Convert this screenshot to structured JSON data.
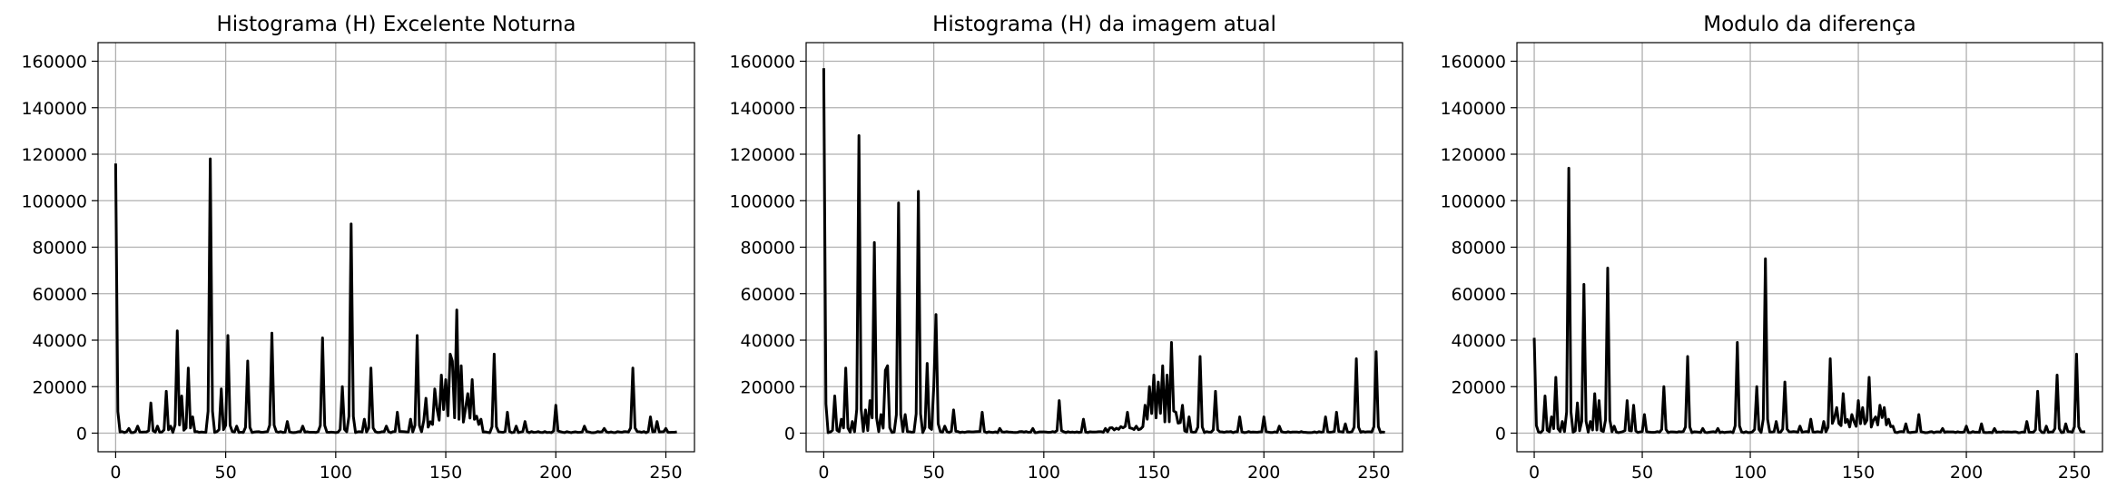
{
  "chart_data": [
    {
      "type": "line",
      "title": "Histograma (H) Excelente Noturna",
      "xlabel": "",
      "ylabel": "",
      "xlim": [
        -8,
        263
      ],
      "ylim": [
        -8000,
        168000
      ],
      "xticks": [
        0,
        50,
        100,
        150,
        200,
        250
      ],
      "yticks": [
        0,
        20000,
        40000,
        60000,
        80000,
        100000,
        120000,
        140000,
        160000
      ],
      "grid": true,
      "line_color": "#000000",
      "baseline": 500,
      "peaks": [
        [
          0,
          116000
        ],
        [
          6,
          2000
        ],
        [
          10,
          3000
        ],
        [
          16,
          13000
        ],
        [
          19,
          3000
        ],
        [
          23,
          18000
        ],
        [
          25,
          3000
        ],
        [
          28,
          44000
        ],
        [
          30,
          16000
        ],
        [
          33,
          28000
        ],
        [
          35,
          7000
        ],
        [
          43,
          118000
        ],
        [
          48,
          19000
        ],
        [
          51,
          42000
        ],
        [
          55,
          3000
        ],
        [
          60,
          31000
        ],
        [
          71,
          43000
        ],
        [
          78,
          5000
        ],
        [
          85,
          3000
        ],
        [
          94,
          41000
        ],
        [
          103,
          20000
        ],
        [
          107,
          90000
        ],
        [
          113,
          6000
        ],
        [
          116,
          28000
        ],
        [
          123,
          3000
        ],
        [
          128,
          9000
        ],
        [
          134,
          6000
        ],
        [
          137,
          42000
        ],
        [
          141,
          15000
        ],
        [
          145,
          19000
        ],
        [
          148,
          25000
        ],
        [
          150,
          23000
        ],
        [
          152,
          34000
        ],
        [
          153,
          31000
        ],
        [
          155,
          53000
        ],
        [
          157,
          29000
        ],
        [
          160,
          17000
        ],
        [
          162,
          23000
        ],
        [
          166,
          6000
        ],
        [
          172,
          34000
        ],
        [
          178,
          9000
        ],
        [
          182,
          3000
        ],
        [
          186,
          5000
        ],
        [
          200,
          12000
        ],
        [
          213,
          3000
        ],
        [
          222,
          2000
        ],
        [
          235,
          28000
        ],
        [
          243,
          7000
        ],
        [
          246,
          5000
        ],
        [
          250,
          2000
        ],
        [
          255,
          500
        ]
      ],
      "noise": [
        [
          140,
          145,
          6000
        ],
        [
          146,
          160,
          12000
        ],
        [
          161,
          165,
          8000
        ]
      ]
    },
    {
      "type": "line",
      "title": "Histograma (H) da imagem atual",
      "xlabel": "",
      "ylabel": "",
      "xlim": [
        -8,
        263
      ],
      "ylim": [
        -8000,
        168000
      ],
      "xticks": [
        0,
        50,
        100,
        150,
        200,
        250
      ],
      "yticks": [
        0,
        20000,
        40000,
        60000,
        80000,
        100000,
        120000,
        140000,
        160000
      ],
      "grid": true,
      "line_color": "#000000",
      "baseline": 500,
      "peaks": [
        [
          0,
          157000
        ],
        [
          5,
          16000
        ],
        [
          8,
          6000
        ],
        [
          10,
          28000
        ],
        [
          13,
          5000
        ],
        [
          16,
          128000
        ],
        [
          19,
          10000
        ],
        [
          21,
          14000
        ],
        [
          23,
          82000
        ],
        [
          26,
          8000
        ],
        [
          28,
          27000
        ],
        [
          29,
          29000
        ],
        [
          34,
          99000
        ],
        [
          37,
          8000
        ],
        [
          43,
          104000
        ],
        [
          47,
          30000
        ],
        [
          50,
          20000
        ],
        [
          51,
          51000
        ],
        [
          55,
          3000
        ],
        [
          59,
          10000
        ],
        [
          72,
          9000
        ],
        [
          80,
          2000
        ],
        [
          95,
          2000
        ],
        [
          107,
          14000
        ],
        [
          118,
          6000
        ],
        [
          128,
          2000
        ],
        [
          138,
          9000
        ],
        [
          142,
          3000
        ],
        [
          146,
          12000
        ],
        [
          148,
          20000
        ],
        [
          150,
          25000
        ],
        [
          152,
          22000
        ],
        [
          154,
          29000
        ],
        [
          156,
          25000
        ],
        [
          158,
          39000
        ],
        [
          160,
          9000
        ],
        [
          163,
          12000
        ],
        [
          166,
          7000
        ],
        [
          171,
          33000
        ],
        [
          178,
          18000
        ],
        [
          189,
          7000
        ],
        [
          200,
          7000
        ],
        [
          207,
          3000
        ],
        [
          228,
          7000
        ],
        [
          233,
          9000
        ],
        [
          237,
          4000
        ],
        [
          242,
          32000
        ],
        [
          251,
          35000
        ],
        [
          254,
          500
        ]
      ],
      "noise": [
        [
          130,
          145,
          3000
        ],
        [
          146,
          162,
          10000
        ]
      ]
    },
    {
      "type": "line",
      "title": "Modulo da diferença",
      "xlabel": "",
      "ylabel": "",
      "xlim": [
        -8,
        263
      ],
      "ylim": [
        -8000,
        168000
      ],
      "xticks": [
        0,
        50,
        100,
        150,
        200,
        250
      ],
      "yticks": [
        0,
        20000,
        40000,
        60000,
        80000,
        100000,
        120000,
        140000,
        160000
      ],
      "grid": true,
      "line_color": "#000000",
      "baseline": 500,
      "peaks": [
        [
          0,
          41000
        ],
        [
          5,
          16000
        ],
        [
          8,
          7000
        ],
        [
          10,
          24000
        ],
        [
          13,
          5000
        ],
        [
          16,
          114000
        ],
        [
          20,
          13000
        ],
        [
          23,
          64000
        ],
        [
          26,
          5000
        ],
        [
          28,
          17000
        ],
        [
          30,
          14000
        ],
        [
          34,
          71000
        ],
        [
          37,
          3000
        ],
        [
          43,
          14000
        ],
        [
          46,
          12000
        ],
        [
          51,
          8000
        ],
        [
          60,
          20000
        ],
        [
          71,
          33000
        ],
        [
          78,
          2000
        ],
        [
          85,
          2000
        ],
        [
          94,
          39000
        ],
        [
          103,
          20000
        ],
        [
          107,
          75000
        ],
        [
          112,
          5000
        ],
        [
          116,
          22000
        ],
        [
          123,
          3000
        ],
        [
          128,
          6000
        ],
        [
          134,
          5000
        ],
        [
          137,
          32000
        ],
        [
          140,
          11000
        ],
        [
          143,
          17000
        ],
        [
          147,
          8000
        ],
        [
          150,
          14000
        ],
        [
          152,
          11000
        ],
        [
          155,
          24000
        ],
        [
          158,
          7000
        ],
        [
          160,
          12000
        ],
        [
          162,
          11000
        ],
        [
          166,
          3000
        ],
        [
          172,
          4000
        ],
        [
          178,
          8000
        ],
        [
          189,
          2000
        ],
        [
          200,
          3000
        ],
        [
          207,
          4000
        ],
        [
          213,
          2000
        ],
        [
          228,
          5000
        ],
        [
          233,
          18000
        ],
        [
          237,
          3000
        ],
        [
          242,
          25000
        ],
        [
          246,
          4000
        ],
        [
          251,
          34000
        ],
        [
          254,
          500
        ]
      ],
      "noise": [
        [
          138,
          165,
          7000
        ]
      ]
    }
  ]
}
